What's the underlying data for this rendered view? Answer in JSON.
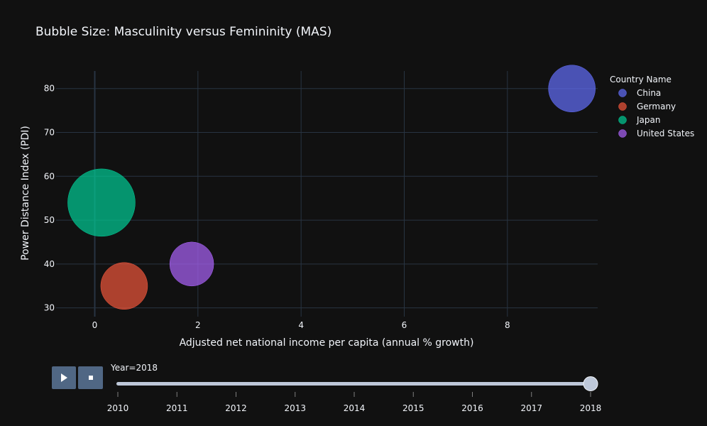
{
  "chart_data": {
    "type": "scatter",
    "title": "Bubble Size: Masculinity versus Femininity (MAS)",
    "xlabel": "Adjusted net national income per capita (annual % growth)",
    "ylabel": "Power Distance Index (PDI)",
    "xlim": [
      -0.75,
      9.75
    ],
    "ylim": [
      28,
      84
    ],
    "x_ticks": [
      0,
      2,
      4,
      6,
      8
    ],
    "y_ticks": [
      30,
      40,
      50,
      60,
      70,
      80
    ],
    "grid": true,
    "legend_title": "Country Name",
    "legend_position": "right",
    "series": [
      {
        "name": "China",
        "color": "#636efa",
        "x": 9.25,
        "y": 80,
        "size": 66
      },
      {
        "name": "Germany",
        "color": "#ef553b",
        "x": 0.57,
        "y": 35,
        "size": 66
      },
      {
        "name": "Japan",
        "color": "#00cc96",
        "x": 0.13,
        "y": 54,
        "size": 95
      },
      {
        "name": "United States",
        "color": "#ab63fa",
        "x": 1.88,
        "y": 40,
        "size": 62
      }
    ]
  },
  "slider": {
    "current_label": "Year=2018",
    "years": [
      "2010",
      "2011",
      "2012",
      "2013",
      "2014",
      "2015",
      "2016",
      "2017",
      "2018"
    ],
    "value": "2018"
  },
  "controls": {
    "play_icon": "play-icon",
    "stop_icon": "stop-icon"
  }
}
